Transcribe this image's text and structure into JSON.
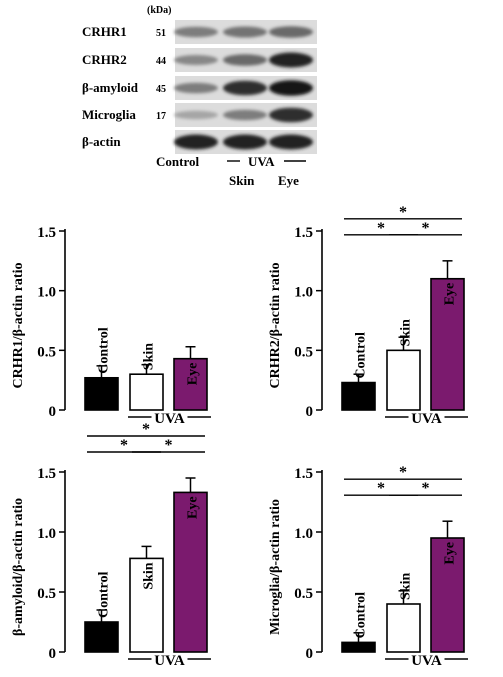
{
  "blot": {
    "kda_label": "(kDa)",
    "rows": [
      {
        "name": "CRHR1",
        "kda": "51",
        "intensity": [
          0.45,
          0.5,
          0.55
        ]
      },
      {
        "name": "CRHR2",
        "kda": "44",
        "intensity": [
          0.4,
          0.55,
          0.9
        ]
      },
      {
        "name": "β-amyloid",
        "kda": "45",
        "intensity": [
          0.45,
          0.85,
          0.95
        ]
      },
      {
        "name": "Microglia",
        "kda": "17",
        "intensity": [
          0.25,
          0.45,
          0.85
        ]
      },
      {
        "name": "β-actin",
        "kda": "",
        "intensity": [
          0.9,
          0.9,
          0.9
        ]
      }
    ],
    "lane_labels": {
      "control": "Control",
      "uva": "UVA",
      "skin": "Skin",
      "eye": "Eye"
    }
  },
  "colors": {
    "control": "#000000",
    "skin": "#ffffff",
    "eye": "#7b1a6e"
  },
  "chart_data": [
    {
      "type": "bar",
      "ylabel": "CRHR1/β-actin ratio",
      "categories": [
        "Control",
        "Skin",
        "Eye"
      ],
      "values": [
        0.27,
        0.3,
        0.43
      ],
      "errors": [
        0.1,
        0.08,
        0.1
      ],
      "ylim": [
        0,
        1.5
      ],
      "yticks": [
        "0",
        "0.5",
        "1.0",
        "1.5"
      ],
      "group_label": "UVA",
      "significance": []
    },
    {
      "type": "bar",
      "ylabel": "CRHR2/β-actin ratio",
      "categories": [
        "Control",
        "Skin",
        "Eye"
      ],
      "values": [
        0.23,
        0.5,
        1.1
      ],
      "errors": [
        0.07,
        0.11,
        0.15
      ],
      "ylim": [
        0,
        1.5
      ],
      "yticks": [
        "0",
        "0.5",
        "1.0",
        "1.5"
      ],
      "group_label": "UVA",
      "significance": [
        {
          "from": 0,
          "to": 2,
          "label": "*",
          "level": 0
        },
        {
          "from": 0,
          "to": 1,
          "label": "*",
          "level": 1
        },
        {
          "from": 1,
          "to": 2,
          "label": "*",
          "level": 1
        }
      ]
    },
    {
      "type": "bar",
      "ylabel": "β-amyloid/β-actin ratio",
      "categories": [
        "Control",
        "Skin",
        "Eye"
      ],
      "values": [
        0.25,
        0.78,
        1.33
      ],
      "errors": [
        0.1,
        0.1,
        0.12
      ],
      "ylim": [
        0,
        1.5
      ],
      "yticks": [
        "0",
        "0.5",
        "1.0",
        "1.5"
      ],
      "group_label": "UVA",
      "significance": [
        {
          "from": 0,
          "to": 2,
          "label": "*",
          "level": 0
        },
        {
          "from": 0,
          "to": 1,
          "label": "*",
          "level": 1
        },
        {
          "from": 1,
          "to": 2,
          "label": "*",
          "level": 1
        }
      ]
    },
    {
      "type": "bar",
      "ylabel": "Microglia/β-actin ratio",
      "categories": [
        "Control",
        "Skin",
        "Eye"
      ],
      "values": [
        0.08,
        0.4,
        0.95
      ],
      "errors": [
        0.08,
        0.11,
        0.14
      ],
      "ylim": [
        0,
        1.5
      ],
      "yticks": [
        "0",
        "0.5",
        "1.0",
        "1.5"
      ],
      "group_label": "UVA",
      "significance": [
        {
          "from": 0,
          "to": 2,
          "label": "*",
          "level": 0
        },
        {
          "from": 0,
          "to": 1,
          "label": "*",
          "level": 1
        },
        {
          "from": 1,
          "to": 2,
          "label": "*",
          "level": 1
        }
      ]
    }
  ]
}
